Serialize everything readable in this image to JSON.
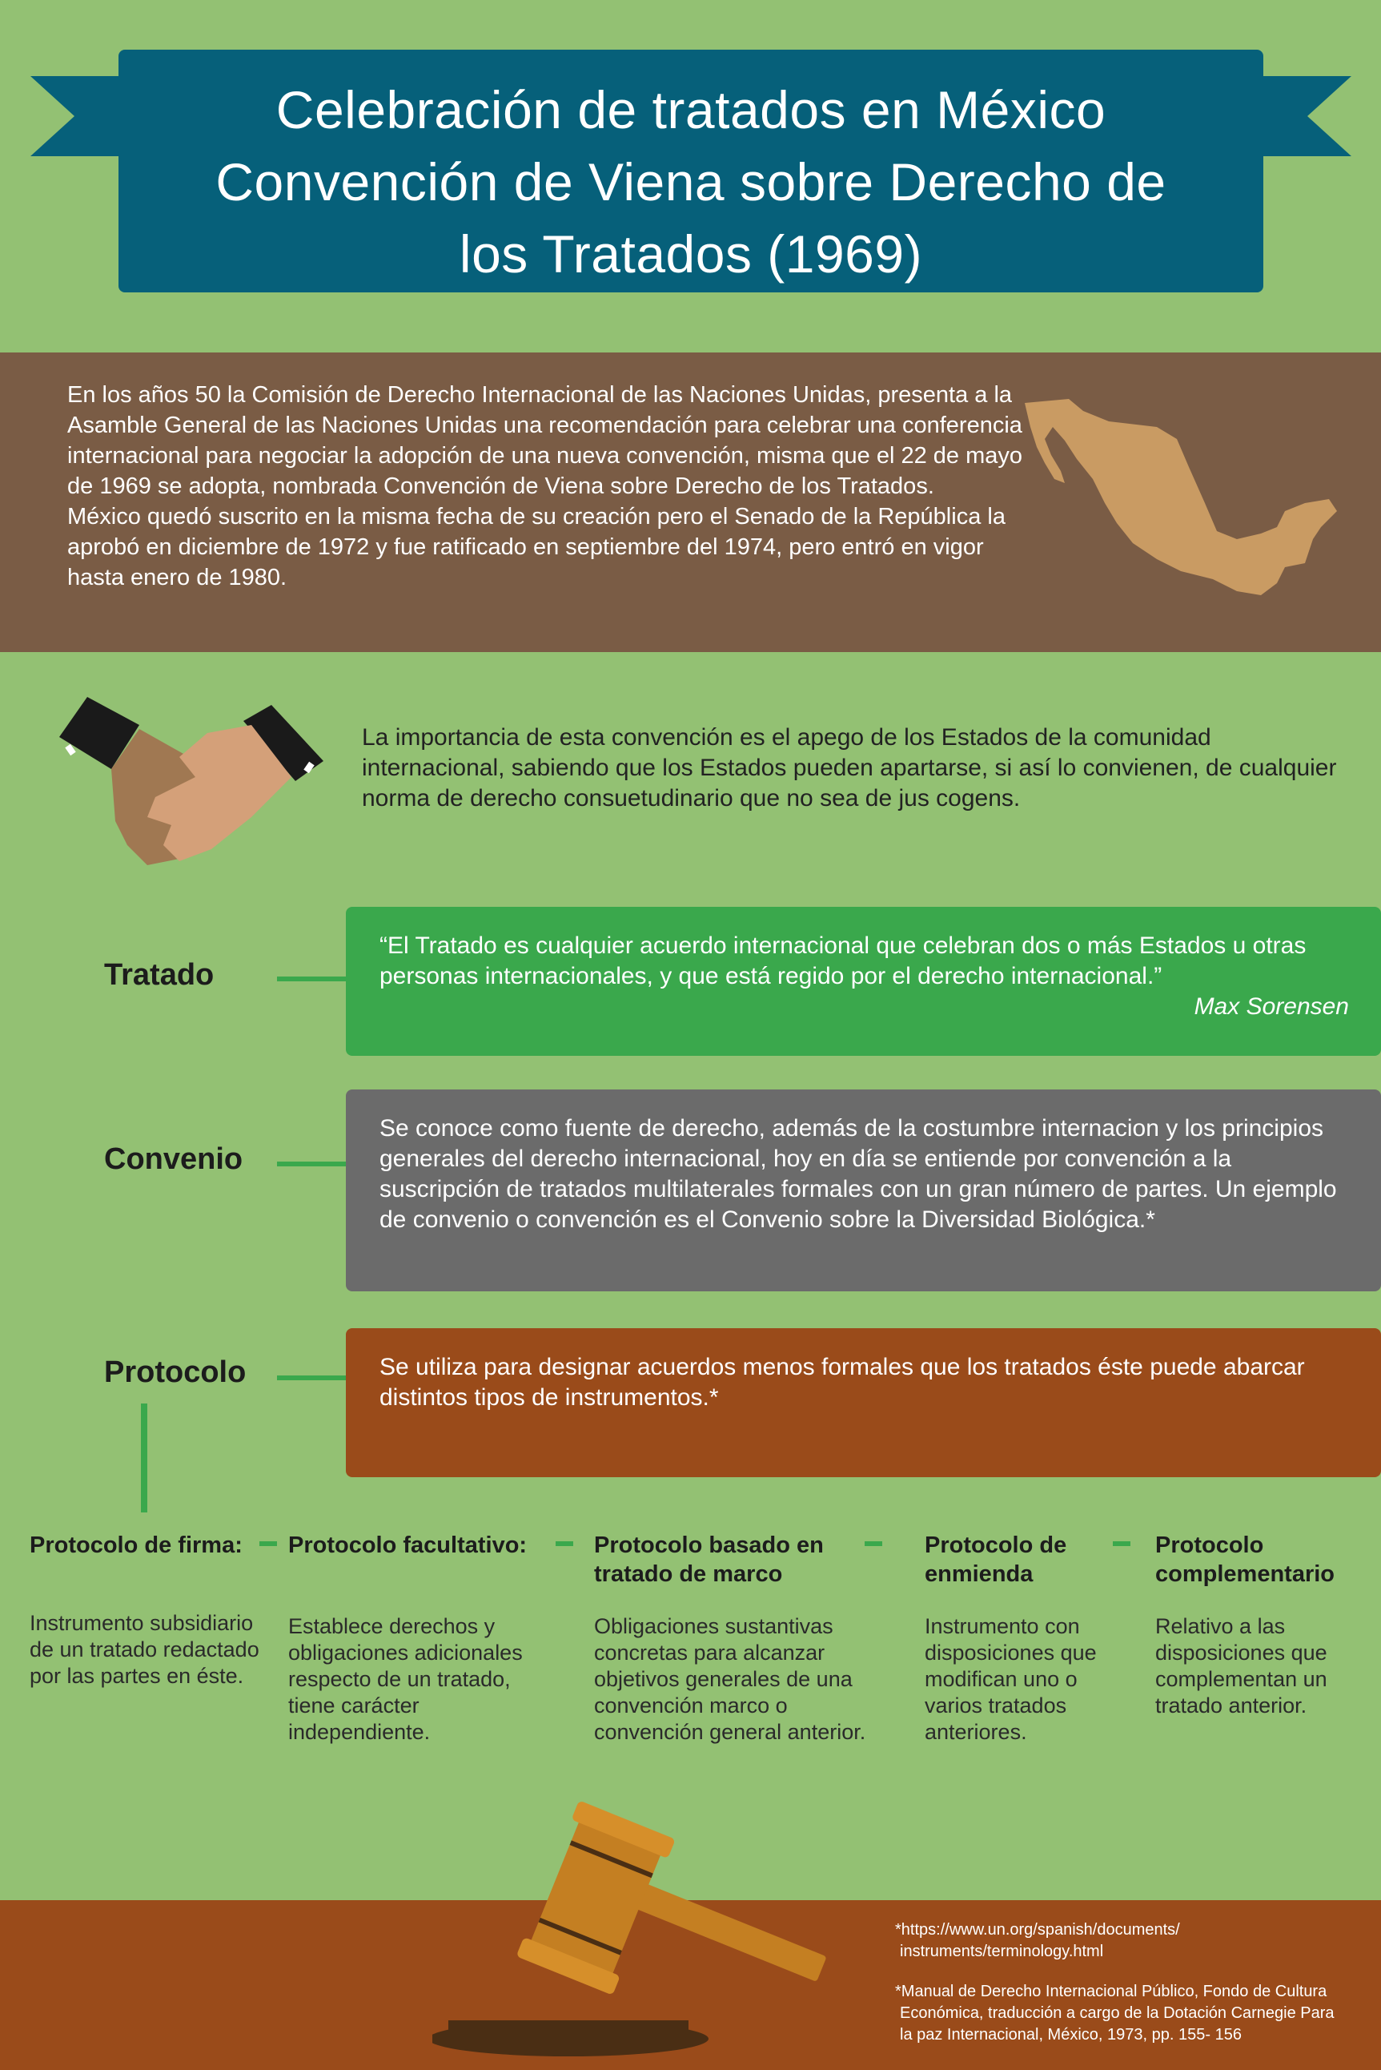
{
  "header": {
    "title_line1": "Celebración de tratados en México",
    "title_line2": "Convención de Viena sobre Derecho de",
    "title_line3": "los Tratados (1969)"
  },
  "intro": {
    "paragraph1": "En los años 50 la Comisión de Derecho Internacional de las Naciones Unidas, presenta a la Asamble General de las Naciones Unidas una recomendación para celebrar una conferencia internacional para negociar la adopción de una nueva convención, misma que el 22 de mayo de 1969 se adopta, nombrada Convención de Viena sobre Derecho de los Tratados.",
    "paragraph2": "México quedó suscrito en la misma fecha de su creación pero el Senado de la República la aprobó en diciembre de 1972 y fue ratificado en septiembre del 1974, pero entró en vigor hasta enero de 1980."
  },
  "importance": {
    "text": "La importancia de esta convención es el apego de los Estados de la comunidad internacional, sabiendo que los Estados pueden apartarse, si así lo convienen, de cualquier norma de derecho consuetudinario que no sea de jus cogens."
  },
  "definitions": {
    "tratado": {
      "term": "Tratado",
      "quote": "“El Tratado es cualquier acuerdo internacional que celebran dos o más Estados u otras personas internacionales, y que está regido por el derecho internacional.”",
      "author": "Max Sorensen"
    },
    "convenio": {
      "term": "Convenio",
      "text": "Se conoce como fuente de derecho, además de la costumbre internacion y los principios generales del derecho internacional, hoy en día se entiende por convención a la suscripción de tratados multilaterales formales con un gran número de partes. Un ejemplo de convenio o convención es el Convenio sobre la Diversidad Biológica.*"
    },
    "protocolo": {
      "term": "Protocolo",
      "text": "Se utiliza para designar acuerdos menos formales que los tratados éste puede abarcar distintos tipos de instrumentos.*"
    }
  },
  "protocol_types": [
    {
      "title": "Protocolo de firma:",
      "description": "Instrumento subsidiario de un tratado redactado por las partes en éste."
    },
    {
      "title": "Protocolo facultativo:",
      "description": "Establece derechos y obligaciones adicionales respecto de un tratado, tiene carácter independiente."
    },
    {
      "title": "Protocolo basado en tratado de marco",
      "description": "Obligaciones sustantivas concretas para alcanzar objetivos generales de una convención marco o convención general anterior."
    },
    {
      "title": "Protocolo de enmienda",
      "description": "Instrumento con disposiciones que modifican uno o varios tratados anteriores."
    },
    {
      "title": "Protocolo complementario",
      "description": "Relativo a las disposiciones que complementan un tratado anterior."
    }
  ],
  "footnotes": {
    "note1_line1": "*https://www.un.org/spanish/documents/",
    "note1_line2": "instruments/terminology.html",
    "note2_line1": "*Manual de Derecho Internacional Público, Fondo de Cultura",
    "note2_line2": "Económica, traducción a cargo de la Dotación Carnegie Para",
    "note2_line3": "la paz Internacional, México, 1973, pp. 155- 156"
  },
  "colors": {
    "background": "#93c173",
    "title_box": "#06607a",
    "intro_band": "#7a5c45",
    "green_box": "#3aa84c",
    "gray_box": "#6b6b6b",
    "brown_box": "#9a4b1a"
  }
}
